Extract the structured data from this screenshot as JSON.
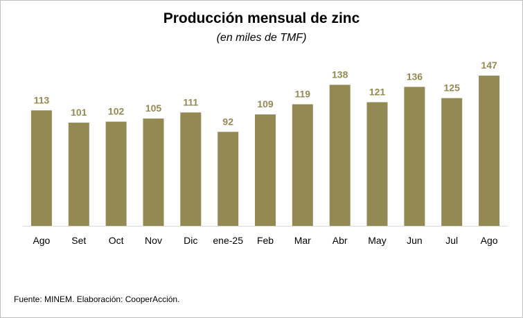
{
  "chart_data": {
    "type": "bar",
    "title": "Producción mensual de zinc",
    "subtitle": "(en miles de TMF)",
    "categories": [
      "Ago",
      "Set",
      "Oct",
      "Nov",
      "Dic",
      "ene-25",
      "Feb",
      "Mar",
      "Abr",
      "May",
      "Jun",
      "Jul",
      "Ago"
    ],
    "values": [
      113,
      101,
      102,
      105,
      111,
      92,
      109,
      119,
      138,
      121,
      136,
      125,
      147
    ],
    "data_labels": true,
    "xlabel": "",
    "ylabel": "",
    "ylim": [
      0,
      160
    ],
    "grid": false,
    "legend": "none",
    "bar_color": "#938953",
    "label_color": "#938953"
  },
  "footer": {
    "source": "Fuente: MINEM. Elaboración: CooperAcción."
  }
}
